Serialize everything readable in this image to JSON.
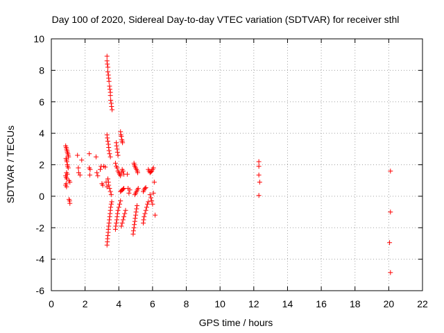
{
  "chart_data": {
    "type": "scatter",
    "title": "Day 100 of 2020, Sidereal Day-to-day VTEC variation (SDTVAR) for receiver sthl",
    "xlabel": "GPS time / hours",
    "ylabel": "SDTVAR / TECUs",
    "xlim": [
      0,
      22
    ],
    "ylim": [
      -6,
      10
    ],
    "xticks": [
      "0",
      "2",
      "4",
      "6",
      "8",
      "10",
      "12",
      "14",
      "16",
      "18",
      "20",
      "22"
    ],
    "yticks": [
      "-6",
      "-4",
      "-2",
      "0",
      "2",
      "4",
      "6",
      "8",
      "10"
    ],
    "grid": true,
    "marker": "+",
    "color": "#ff0000",
    "points": [
      [
        0.85,
        3.2
      ],
      [
        0.88,
        3.1
      ],
      [
        0.9,
        3.0
      ],
      [
        0.93,
        2.9
      ],
      [
        0.95,
        2.8
      ],
      [
        0.98,
        2.7
      ],
      [
        1.0,
        2.6
      ],
      [
        1.02,
        2.5
      ],
      [
        0.87,
        2.4
      ],
      [
        0.9,
        2.3
      ],
      [
        0.92,
        2.2
      ],
      [
        0.95,
        2.0
      ],
      [
        0.97,
        1.9
      ],
      [
        1.0,
        1.8
      ],
      [
        0.9,
        1.5
      ],
      [
        0.95,
        1.4
      ],
      [
        0.85,
        1.3
      ],
      [
        0.88,
        1.2
      ],
      [
        0.92,
        1.1
      ],
      [
        1.05,
        1.0
      ],
      [
        1.1,
        0.9
      ],
      [
        0.88,
        0.8
      ],
      [
        0.85,
        0.7
      ],
      [
        0.9,
        0.6
      ],
      [
        1.05,
        -0.2
      ],
      [
        1.08,
        -0.3
      ],
      [
        1.1,
        -0.45
      ],
      [
        1.55,
        2.6
      ],
      [
        1.6,
        1.8
      ],
      [
        1.62,
        1.5
      ],
      [
        1.7,
        1.35
      ],
      [
        1.8,
        2.3
      ],
      [
        2.25,
        2.7
      ],
      [
        2.25,
        1.8
      ],
      [
        2.3,
        1.7
      ],
      [
        2.28,
        1.35
      ],
      [
        2.65,
        2.5
      ],
      [
        2.7,
        1.5
      ],
      [
        2.75,
        1.3
      ],
      [
        2.9,
        1.7
      ],
      [
        2.95,
        1.9
      ],
      [
        3.0,
        0.8
      ],
      [
        3.05,
        0.7
      ],
      [
        3.1,
        1.9
      ],
      [
        3.2,
        1.85
      ],
      [
        3.25,
        0.9
      ],
      [
        3.3,
        0.6
      ],
      [
        3.3,
        8.9
      ],
      [
        3.3,
        8.6
      ],
      [
        3.32,
        8.4
      ],
      [
        3.35,
        8.2
      ],
      [
        3.35,
        7.9
      ],
      [
        3.38,
        7.7
      ],
      [
        3.4,
        7.5
      ],
      [
        3.42,
        7.3
      ],
      [
        3.45,
        7.0
      ],
      [
        3.47,
        6.8
      ],
      [
        3.5,
        6.6
      ],
      [
        3.5,
        6.4
      ],
      [
        3.52,
        6.1
      ],
      [
        3.55,
        5.9
      ],
      [
        3.57,
        5.7
      ],
      [
        3.6,
        5.5
      ],
      [
        3.3,
        3.9
      ],
      [
        3.32,
        3.7
      ],
      [
        3.35,
        3.5
      ],
      [
        3.38,
        3.3
      ],
      [
        3.4,
        3.1
      ],
      [
        3.42,
        2.9
      ],
      [
        3.45,
        2.7
      ],
      [
        3.5,
        2.5
      ],
      [
        3.35,
        1.1
      ],
      [
        3.38,
        0.9
      ],
      [
        3.4,
        0.7
      ],
      [
        3.45,
        0.5
      ],
      [
        3.5,
        0.3
      ],
      [
        3.55,
        0.1
      ],
      [
        3.3,
        -3.1
      ],
      [
        3.32,
        -2.9
      ],
      [
        3.33,
        -2.7
      ],
      [
        3.35,
        -2.5
      ],
      [
        3.37,
        -2.3
      ],
      [
        3.38,
        -2.1
      ],
      [
        3.4,
        -1.9
      ],
      [
        3.42,
        -1.7
      ],
      [
        3.44,
        -1.5
      ],
      [
        3.46,
        -1.3
      ],
      [
        3.48,
        -1.1
      ],
      [
        3.5,
        -0.9
      ],
      [
        3.52,
        -0.7
      ],
      [
        3.55,
        -0.5
      ],
      [
        3.58,
        -0.35
      ],
      [
        3.85,
        3.4
      ],
      [
        3.87,
        3.2
      ],
      [
        3.9,
        3.0
      ],
      [
        3.92,
        2.8
      ],
      [
        3.95,
        2.6
      ],
      [
        3.8,
        2.1
      ],
      [
        3.85,
        1.9
      ],
      [
        3.9,
        1.8
      ],
      [
        3.95,
        1.6
      ],
      [
        4.0,
        1.5
      ],
      [
        4.05,
        1.4
      ],
      [
        4.1,
        1.3
      ],
      [
        4.15,
        1.5
      ],
      [
        4.2,
        1.7
      ],
      [
        4.25,
        1.6
      ],
      [
        4.3,
        1.4
      ],
      [
        4.1,
        4.1
      ],
      [
        4.12,
        3.9
      ],
      [
        4.15,
        3.8
      ],
      [
        4.18,
        3.6
      ],
      [
        4.2,
        3.5
      ],
      [
        4.22,
        3.4
      ],
      [
        3.8,
        -2.1
      ],
      [
        3.82,
        -1.9
      ],
      [
        3.85,
        -1.7
      ],
      [
        3.88,
        -1.5
      ],
      [
        3.9,
        -1.3
      ],
      [
        3.92,
        -1.1
      ],
      [
        3.95,
        -0.9
      ],
      [
        4.0,
        -0.7
      ],
      [
        4.05,
        -0.5
      ],
      [
        4.1,
        -0.3
      ],
      [
        4.15,
        -1.9
      ],
      [
        4.2,
        -1.7
      ],
      [
        4.25,
        -1.5
      ],
      [
        4.3,
        -1.3
      ],
      [
        4.35,
        -1.1
      ],
      [
        4.4,
        -0.9
      ],
      [
        4.1,
        0.3
      ],
      [
        4.15,
        0.35
      ],
      [
        4.2,
        0.4
      ],
      [
        4.25,
        0.45
      ],
      [
        4.3,
        0.5
      ],
      [
        4.5,
        1.4
      ],
      [
        4.55,
        0.5
      ],
      [
        4.6,
        0.2
      ],
      [
        4.65,
        0.4
      ],
      [
        4.9,
        2.1
      ],
      [
        4.92,
        2.0
      ],
      [
        4.95,
        1.9
      ],
      [
        5.0,
        1.8
      ],
      [
        5.05,
        1.7
      ],
      [
        5.1,
        1.6
      ],
      [
        5.12,
        1.5
      ],
      [
        4.85,
        -2.4
      ],
      [
        4.87,
        -2.2
      ],
      [
        4.9,
        -2.0
      ],
      [
        4.92,
        -1.8
      ],
      [
        4.95,
        -1.6
      ],
      [
        4.97,
        -1.4
      ],
      [
        5.0,
        -1.2
      ],
      [
        5.02,
        -1.0
      ],
      [
        5.05,
        -0.8
      ],
      [
        5.08,
        -0.6
      ],
      [
        4.95,
        0.1
      ],
      [
        5.0,
        0.2
      ],
      [
        5.05,
        0.3
      ],
      [
        5.1,
        0.4
      ],
      [
        5.15,
        0.5
      ],
      [
        5.45,
        -1.7
      ],
      [
        5.47,
        -1.5
      ],
      [
        5.5,
        -1.3
      ],
      [
        5.55,
        -1.1
      ],
      [
        5.6,
        -0.9
      ],
      [
        5.65,
        -0.7
      ],
      [
        5.7,
        -0.5
      ],
      [
        5.75,
        -0.35
      ],
      [
        5.45,
        0.3
      ],
      [
        5.5,
        0.4
      ],
      [
        5.55,
        0.5
      ],
      [
        5.6,
        0.55
      ],
      [
        5.75,
        1.7
      ],
      [
        5.8,
        1.6
      ],
      [
        5.85,
        1.5
      ],
      [
        5.9,
        1.55
      ],
      [
        5.95,
        1.6
      ],
      [
        6.0,
        1.7
      ],
      [
        6.05,
        1.8
      ],
      [
        5.85,
        0.1
      ],
      [
        5.9,
        -0.1
      ],
      [
        5.95,
        -0.3
      ],
      [
        6.0,
        -0.5
      ],
      [
        6.05,
        0.2
      ],
      [
        6.1,
        0.9
      ],
      [
        6.15,
        -1.2
      ],
      [
        12.3,
        2.2
      ],
      [
        12.3,
        1.9
      ],
      [
        12.3,
        1.35
      ],
      [
        12.35,
        0.9
      ],
      [
        12.3,
        0.05
      ],
      [
        20.1,
        1.6
      ],
      [
        20.1,
        -1.0
      ],
      [
        20.05,
        -2.95
      ],
      [
        20.1,
        -4.85
      ]
    ]
  }
}
